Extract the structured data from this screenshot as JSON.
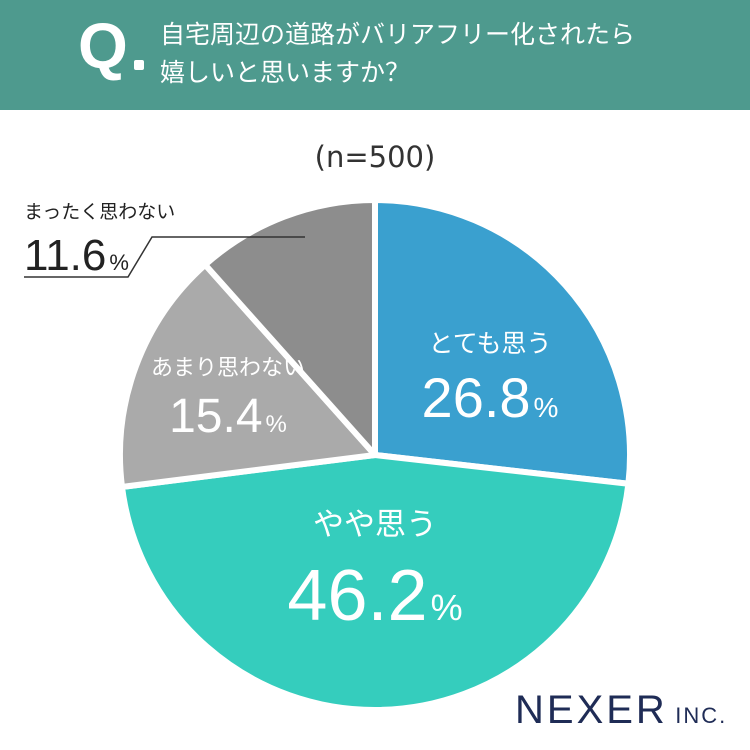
{
  "header": {
    "q_mark": "Q",
    "question_line1": "自宅周辺の道路がバリアフリー化されたら",
    "question_line2": "嬉しいと思いますか？"
  },
  "sample_label": "(n=500)",
  "brand": {
    "name": "NEXER",
    "suffix": "INC."
  },
  "colors": {
    "header_bg": "#4e9a8e",
    "very_yes": "#3aa0cf",
    "somewhat_yes": "#35cdbd",
    "not_really": "#aaaaaa",
    "not_at_all": "#8d8d8d"
  },
  "chart_data": {
    "type": "pie",
    "title": "",
    "slices": [
      {
        "label": "とても思う",
        "value": 26.8,
        "unit": "%",
        "color": "#3aa0cf"
      },
      {
        "label": "やや思う",
        "value": 46.2,
        "unit": "%",
        "color": "#35cdbd"
      },
      {
        "label": "あまり思わない",
        "value": 15.4,
        "unit": "%",
        "color": "#aaaaaa"
      },
      {
        "label": "まったく思わない",
        "value": 11.6,
        "unit": "%",
        "color": "#8d8d8d"
      }
    ]
  }
}
